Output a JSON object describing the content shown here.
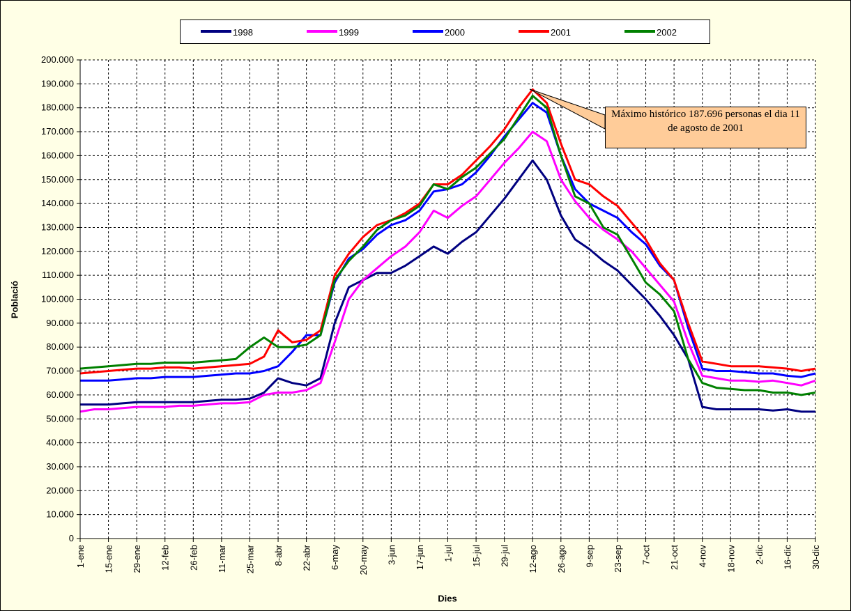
{
  "chart_data": {
    "type": "line",
    "annotation": "Máximo histórico 187.696 personas el dia 11 de agosto de 2001",
    "y_label": "Població",
    "x_label": "Dies",
    "categories": [
      "1-ene",
      null,
      "15-ene",
      null,
      "29-ene",
      null,
      "12-feb",
      null,
      "26-feb",
      null,
      "11-mar",
      null,
      "25-mar",
      null,
      "8-abr",
      null,
      "22-abr",
      null,
      "6-may",
      null,
      "20-may",
      null,
      "3-jun",
      null,
      "17-jun",
      null,
      "1-jul",
      null,
      "15-jul",
      null,
      "29-jul",
      null,
      "12-ago",
      null,
      "26-ago",
      null,
      "9-sep",
      null,
      "23-sep",
      null,
      "7-oct",
      null,
      "21-oct",
      null,
      "4-nov",
      null,
      "18-nov",
      null,
      "2-dic",
      null,
      "16-dic",
      null,
      "30-dic"
    ],
    "series": [
      {
        "name": "1998",
        "color": "#000080",
        "values": [
          56000,
          56000,
          56000,
          56500,
          57000,
          57000,
          57000,
          57000,
          57000,
          57500,
          58000,
          58000,
          58500,
          61000,
          67000,
          65000,
          64000,
          67000,
          90000,
          105000,
          108000,
          111000,
          111000,
          114000,
          118000,
          122000,
          119000,
          124000,
          128000,
          135000,
          142000,
          150000,
          158000,
          150000,
          135000,
          125000,
          121000,
          116000,
          112000,
          106000,
          100000,
          93000,
          85000,
          75000,
          55000,
          54000,
          54000,
          54000,
          54000,
          53500,
          54000,
          53000,
          53000
        ]
      },
      {
        "name": "1999",
        "color": "#FF00FF",
        "values": [
          53000,
          54000,
          54000,
          54500,
          55000,
          55000,
          55000,
          55500,
          55500,
          56000,
          56500,
          56500,
          57000,
          60000,
          61000,
          61000,
          62000,
          65000,
          82000,
          100000,
          108000,
          113000,
          118000,
          122000,
          128000,
          137000,
          134000,
          139000,
          143000,
          150000,
          157000,
          163000,
          170000,
          166000,
          150000,
          141000,
          134000,
          129000,
          125000,
          120000,
          113000,
          106000,
          99000,
          82000,
          68000,
          67000,
          66000,
          66000,
          65500,
          66000,
          65000,
          64000,
          66000
        ]
      },
      {
        "name": "2000",
        "color": "#0000FF",
        "values": [
          66000,
          66000,
          66000,
          66500,
          67000,
          67000,
          67500,
          67500,
          67500,
          68000,
          68500,
          69000,
          69000,
          70000,
          72000,
          78000,
          85000,
          85000,
          107000,
          117000,
          121000,
          127000,
          131000,
          133000,
          137000,
          145000,
          146000,
          148000,
          153000,
          160000,
          168000,
          175000,
          182000,
          178000,
          160000,
          146000,
          140000,
          137000,
          134000,
          128000,
          123000,
          114000,
          108000,
          88000,
          71000,
          70000,
          70000,
          69500,
          69000,
          69000,
          68000,
          67500,
          69000
        ]
      },
      {
        "name": "2001",
        "color": "#FF0000",
        "values": [
          69000,
          69500,
          70000,
          70500,
          71000,
          71000,
          71500,
          71500,
          71000,
          71500,
          72000,
          72500,
          73000,
          76000,
          87000,
          82000,
          83000,
          87000,
          110000,
          119000,
          126000,
          131000,
          133000,
          136000,
          140000,
          148000,
          148000,
          152000,
          158000,
          164000,
          171000,
          180000,
          187696,
          182000,
          165000,
          150000,
          148000,
          143000,
          139000,
          132000,
          125000,
          115000,
          108000,
          90000,
          74000,
          73000,
          72000,
          72000,
          72000,
          71500,
          71000,
          70000,
          71000
        ]
      },
      {
        "name": "2002",
        "color": "#008000",
        "values": [
          71000,
          71500,
          72000,
          72500,
          73000,
          73000,
          73500,
          73500,
          73500,
          74000,
          74500,
          75000,
          80000,
          84000,
          80000,
          80000,
          81000,
          85000,
          108000,
          116000,
          122000,
          129000,
          133000,
          135000,
          139000,
          148000,
          146000,
          151000,
          155000,
          161000,
          167000,
          176000,
          185000,
          180000,
          160000,
          143000,
          140000,
          130000,
          127000,
          117000,
          107000,
          102000,
          95000,
          75000,
          65000,
          63000,
          62500,
          62000,
          62000,
          61000,
          61000,
          60000,
          61000
        ]
      }
    ],
    "ylim": [
      0,
      200000
    ],
    "yticks": [
      {
        "value": 0,
        "label": "0"
      },
      {
        "value": 10000,
        "label": "10.000"
      },
      {
        "value": 20000,
        "label": "20.000"
      },
      {
        "value": 30000,
        "label": "30.000"
      },
      {
        "value": 40000,
        "label": "40.000"
      },
      {
        "value": 50000,
        "label": "50.000"
      },
      {
        "value": 60000,
        "label": "60.000"
      },
      {
        "value": 70000,
        "label": "70.000"
      },
      {
        "value": 80000,
        "label": "80.000"
      },
      {
        "value": 90000,
        "label": "90.000"
      },
      {
        "value": 100000,
        "label": "100.000"
      },
      {
        "value": 110000,
        "label": "110.000"
      },
      {
        "value": 120000,
        "label": "120.000"
      },
      {
        "value": 130000,
        "label": "130.000"
      },
      {
        "value": 140000,
        "label": "140.000"
      },
      {
        "value": 150000,
        "label": "150.000"
      },
      {
        "value": 160000,
        "label": "160.000"
      },
      {
        "value": 170000,
        "label": "170.000"
      },
      {
        "value": 180000,
        "label": "180.000"
      },
      {
        "value": 190000,
        "label": "190.000"
      },
      {
        "value": 200000,
        "label": "200.000"
      }
    ],
    "grid": true
  }
}
